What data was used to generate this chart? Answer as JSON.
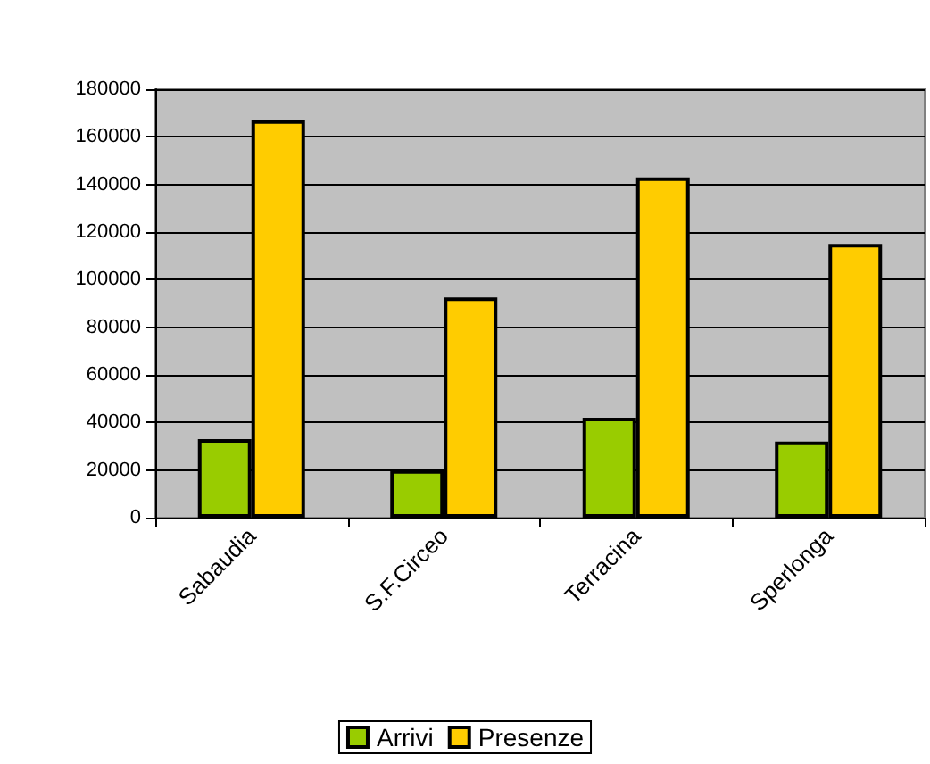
{
  "chart_data": {
    "type": "bar",
    "categories": [
      "Sabaudia",
      "S.F.Circeo",
      "Terracina",
      "Sperlonga"
    ],
    "series": [
      {
        "name": "Arrivi",
        "color": "#99cc00",
        "values": [
          33000,
          20000,
          42000,
          32000
        ]
      },
      {
        "name": "Presenze",
        "color": "#ffcc00",
        "values": [
          167000,
          92500,
          143000,
          115000
        ]
      }
    ],
    "ylim": [
      0,
      180000
    ],
    "yticks": [
      0,
      20000,
      40000,
      60000,
      80000,
      100000,
      120000,
      140000,
      160000,
      180000
    ],
    "grid": "y",
    "legend": "bottom"
  }
}
